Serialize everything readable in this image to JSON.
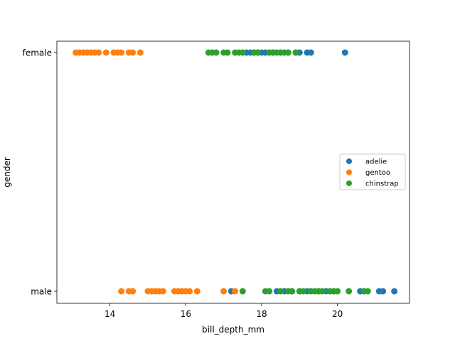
{
  "chart_data": {
    "type": "scatter",
    "xlabel": "bill_depth_mm",
    "ylabel": "gender",
    "xlim": [
      12.6,
      21.9
    ],
    "x_ticks": [
      14,
      16,
      18,
      20
    ],
    "y_categories": [
      "male",
      "female"
    ],
    "legend_position": "center-right",
    "series": [
      {
        "name": "adelie",
        "color": "#1f77b4",
        "points": [
          {
            "x": 17.6,
            "y": "female"
          },
          {
            "x": 17.7,
            "y": "female"
          },
          {
            "x": 17.8,
            "y": "female"
          },
          {
            "x": 17.9,
            "y": "female"
          },
          {
            "x": 18.0,
            "y": "female"
          },
          {
            "x": 18.1,
            "y": "female"
          },
          {
            "x": 18.3,
            "y": "female"
          },
          {
            "x": 18.5,
            "y": "female"
          },
          {
            "x": 18.7,
            "y": "female"
          },
          {
            "x": 18.9,
            "y": "female"
          },
          {
            "x": 19.0,
            "y": "female"
          },
          {
            "x": 19.2,
            "y": "female"
          },
          {
            "x": 19.3,
            "y": "female"
          },
          {
            "x": 20.2,
            "y": "female"
          },
          {
            "x": 17.2,
            "y": "male"
          },
          {
            "x": 18.4,
            "y": "male"
          },
          {
            "x": 18.6,
            "y": "male"
          },
          {
            "x": 18.8,
            "y": "male"
          },
          {
            "x": 19.0,
            "y": "male"
          },
          {
            "x": 19.2,
            "y": "male"
          },
          {
            "x": 19.5,
            "y": "male"
          },
          {
            "x": 19.7,
            "y": "male"
          },
          {
            "x": 19.9,
            "y": "male"
          },
          {
            "x": 20.6,
            "y": "male"
          },
          {
            "x": 20.7,
            "y": "male"
          },
          {
            "x": 21.1,
            "y": "male"
          },
          {
            "x": 21.2,
            "y": "male"
          },
          {
            "x": 21.5,
            "y": "male"
          }
        ]
      },
      {
        "name": "gentoo",
        "color": "#ff7f0e",
        "points": [
          {
            "x": 13.1,
            "y": "female"
          },
          {
            "x": 13.2,
            "y": "female"
          },
          {
            "x": 13.3,
            "y": "female"
          },
          {
            "x": 13.4,
            "y": "female"
          },
          {
            "x": 13.5,
            "y": "female"
          },
          {
            "x": 13.6,
            "y": "female"
          },
          {
            "x": 13.7,
            "y": "female"
          },
          {
            "x": 13.9,
            "y": "female"
          },
          {
            "x": 14.1,
            "y": "female"
          },
          {
            "x": 14.2,
            "y": "female"
          },
          {
            "x": 14.3,
            "y": "female"
          },
          {
            "x": 14.5,
            "y": "female"
          },
          {
            "x": 14.6,
            "y": "female"
          },
          {
            "x": 14.8,
            "y": "female"
          },
          {
            "x": 14.3,
            "y": "male"
          },
          {
            "x": 14.5,
            "y": "male"
          },
          {
            "x": 14.6,
            "y": "male"
          },
          {
            "x": 15.0,
            "y": "male"
          },
          {
            "x": 15.1,
            "y": "male"
          },
          {
            "x": 15.2,
            "y": "male"
          },
          {
            "x": 15.3,
            "y": "male"
          },
          {
            "x": 15.4,
            "y": "male"
          },
          {
            "x": 15.7,
            "y": "male"
          },
          {
            "x": 15.8,
            "y": "male"
          },
          {
            "x": 15.9,
            "y": "male"
          },
          {
            "x": 16.0,
            "y": "male"
          },
          {
            "x": 16.1,
            "y": "male"
          },
          {
            "x": 16.3,
            "y": "male"
          },
          {
            "x": 17.0,
            "y": "male"
          },
          {
            "x": 17.3,
            "y": "male"
          }
        ]
      },
      {
        "name": "chinstrap",
        "color": "#2ca02c",
        "points": [
          {
            "x": 16.6,
            "y": "female"
          },
          {
            "x": 16.7,
            "y": "female"
          },
          {
            "x": 16.8,
            "y": "female"
          },
          {
            "x": 17.0,
            "y": "female"
          },
          {
            "x": 17.1,
            "y": "female"
          },
          {
            "x": 17.3,
            "y": "female"
          },
          {
            "x": 17.4,
            "y": "female"
          },
          {
            "x": 17.5,
            "y": "female"
          },
          {
            "x": 17.8,
            "y": "female"
          },
          {
            "x": 17.9,
            "y": "female"
          },
          {
            "x": 18.2,
            "y": "female"
          },
          {
            "x": 18.3,
            "y": "female"
          },
          {
            "x": 18.4,
            "y": "female"
          },
          {
            "x": 18.5,
            "y": "female"
          },
          {
            "x": 18.6,
            "y": "female"
          },
          {
            "x": 18.7,
            "y": "female"
          },
          {
            "x": 18.9,
            "y": "female"
          },
          {
            "x": 17.5,
            "y": "male"
          },
          {
            "x": 18.1,
            "y": "male"
          },
          {
            "x": 18.2,
            "y": "male"
          },
          {
            "x": 18.5,
            "y": "male"
          },
          {
            "x": 18.7,
            "y": "male"
          },
          {
            "x": 18.8,
            "y": "male"
          },
          {
            "x": 19.0,
            "y": "male"
          },
          {
            "x": 19.1,
            "y": "male"
          },
          {
            "x": 19.3,
            "y": "male"
          },
          {
            "x": 19.4,
            "y": "male"
          },
          {
            "x": 19.5,
            "y": "male"
          },
          {
            "x": 19.6,
            "y": "male"
          },
          {
            "x": 19.8,
            "y": "male"
          },
          {
            "x": 19.9,
            "y": "male"
          },
          {
            "x": 20.0,
            "y": "male"
          },
          {
            "x": 20.3,
            "y": "male"
          },
          {
            "x": 20.7,
            "y": "male"
          },
          {
            "x": 20.8,
            "y": "male"
          }
        ]
      }
    ]
  }
}
